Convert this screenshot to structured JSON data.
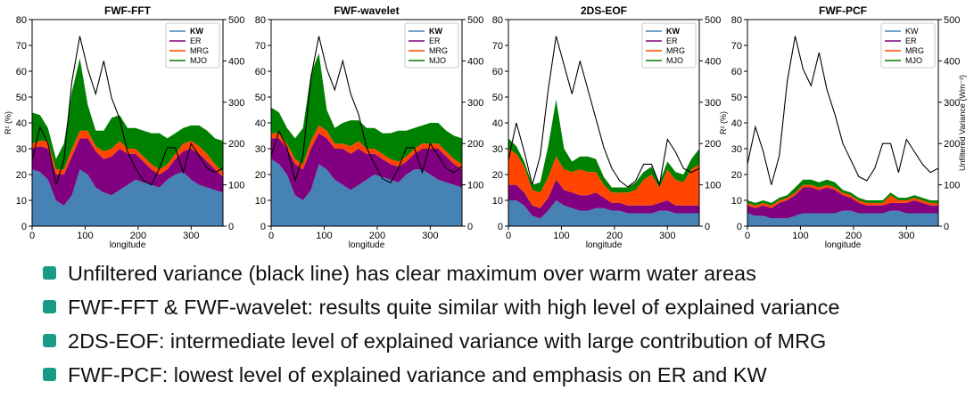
{
  "chart_data": [
    {
      "type": "area",
      "title": "FWF-FFT",
      "xlabel": "longitude",
      "ylabel": "R² (%)",
      "y2label": "",
      "xlim": [
        0,
        360
      ],
      "ylim": [
        0,
        80
      ],
      "y2lim": [
        0,
        500
      ],
      "xticks": [
        0,
        100,
        200,
        300
      ],
      "yticks": [
        0,
        10,
        20,
        30,
        40,
        50,
        60,
        70,
        80
      ],
      "y2ticks": [
        0,
        100,
        200,
        300,
        400,
        500
      ],
      "x": [
        0,
        15,
        30,
        45,
        60,
        75,
        90,
        105,
        120,
        135,
        150,
        165,
        180,
        195,
        210,
        225,
        240,
        255,
        270,
        285,
        300,
        315,
        330,
        345,
        360
      ],
      "legend": [
        "KW",
        "ER",
        "MRG",
        "MJO"
      ],
      "series": [
        {
          "name": "KW",
          "color": "#4682b4",
          "values": [
            22,
            21,
            18,
            10,
            8,
            12,
            22,
            20,
            15,
            13,
            12,
            14,
            16,
            18,
            17,
            16,
            15,
            18,
            20,
            21,
            18,
            16,
            15,
            14,
            13
          ]
        },
        {
          "name": "ER",
          "color": "#800080",
          "values": [
            8,
            10,
            12,
            10,
            12,
            15,
            12,
            14,
            14,
            13,
            15,
            16,
            12,
            10,
            8,
            6,
            5,
            4,
            6,
            8,
            12,
            12,
            10,
            8,
            6
          ]
        },
        {
          "name": "MRG",
          "color": "#ff4500",
          "values": [
            2,
            2,
            3,
            2,
            2,
            3,
            3,
            3,
            2,
            3,
            3,
            3,
            2,
            2,
            2,
            2,
            2,
            2,
            2,
            3,
            3,
            3,
            3,
            2,
            2
          ]
        },
        {
          "name": "MJO",
          "color": "#008000",
          "values": [
            12,
            10,
            5,
            4,
            10,
            22,
            28,
            10,
            6,
            8,
            12,
            10,
            8,
            8,
            10,
            12,
            14,
            10,
            8,
            6,
            6,
            8,
            9,
            10,
            12
          ]
        }
      ],
      "unfiltered": [
        160,
        240,
        200,
        100,
        160,
        350,
        460,
        380,
        320,
        400,
        310,
        260,
        180,
        140,
        110,
        100,
        140,
        190,
        190,
        130,
        200,
        170,
        140,
        130,
        140
      ],
      "legend_title_bold": true
    },
    {
      "type": "area",
      "title": "FWF-wavelet",
      "xlabel": "longitude",
      "ylabel": "",
      "y2label": "",
      "xlim": [
        0,
        360
      ],
      "ylim": [
        0,
        80
      ],
      "y2lim": [
        0,
        500
      ],
      "xticks": [
        0,
        100,
        200,
        300
      ],
      "yticks": [
        0,
        10,
        20,
        30,
        40,
        50,
        60,
        70,
        80
      ],
      "y2ticks": [
        0,
        100,
        200,
        300,
        400,
        500
      ],
      "x": [
        0,
        15,
        30,
        45,
        60,
        75,
        90,
        105,
        120,
        135,
        150,
        165,
        180,
        195,
        210,
        225,
        240,
        255,
        270,
        285,
        300,
        315,
        330,
        345,
        360
      ],
      "legend": [
        "KW",
        "ER",
        "MRG",
        "MJO"
      ],
      "series": [
        {
          "name": "KW",
          "color": "#4682b4",
          "values": [
            26,
            24,
            20,
            12,
            10,
            14,
            24,
            22,
            18,
            16,
            14,
            16,
            18,
            20,
            19,
            18,
            17,
            20,
            22,
            22,
            20,
            18,
            17,
            16,
            15
          ]
        },
        {
          "name": "ER",
          "color": "#800080",
          "values": [
            8,
            10,
            10,
            12,
            12,
            16,
            12,
            12,
            12,
            14,
            14,
            14,
            10,
            8,
            7,
            6,
            6,
            5,
            6,
            8,
            10,
            12,
            10,
            8,
            7
          ]
        },
        {
          "name": "MRG",
          "color": "#ff4500",
          "values": [
            2,
            2,
            2,
            2,
            2,
            3,
            3,
            3,
            2,
            2,
            3,
            3,
            2,
            2,
            2,
            2,
            2,
            2,
            2,
            2,
            2,
            2,
            2,
            2,
            2
          ]
        },
        {
          "name": "MJO",
          "color": "#008000",
          "values": [
            10,
            8,
            6,
            8,
            14,
            26,
            28,
            8,
            6,
            8,
            10,
            8,
            8,
            8,
            8,
            10,
            12,
            10,
            8,
            7,
            8,
            8,
            8,
            9,
            10
          ]
        }
      ],
      "unfiltered": [
        170,
        230,
        190,
        110,
        170,
        360,
        460,
        380,
        330,
        400,
        320,
        270,
        190,
        150,
        115,
        105,
        140,
        190,
        190,
        130,
        200,
        170,
        140,
        130,
        145
      ],
      "legend_title_bold": true
    },
    {
      "type": "area",
      "title": "2DS-EOF",
      "xlabel": "longitude",
      "ylabel": "",
      "y2label": "",
      "xlim": [
        0,
        360
      ],
      "ylim": [
        0,
        80
      ],
      "y2lim": [
        0,
        500
      ],
      "xticks": [
        0,
        100,
        200,
        300
      ],
      "yticks": [
        0,
        10,
        20,
        30,
        40,
        50,
        60,
        70,
        80
      ],
      "y2ticks": [
        0,
        100,
        200,
        300,
        400,
        500
      ],
      "x": [
        0,
        15,
        30,
        45,
        60,
        75,
        90,
        105,
        120,
        135,
        150,
        165,
        180,
        195,
        210,
        225,
        240,
        255,
        270,
        285,
        300,
        315,
        330,
        345,
        360
      ],
      "legend": [
        "KW",
        "ER",
        "MRG",
        "MJO"
      ],
      "series": [
        {
          "name": "KW",
          "color": "#4682b4",
          "values": [
            10,
            10,
            8,
            4,
            3,
            6,
            10,
            8,
            7,
            6,
            6,
            7,
            7,
            6,
            6,
            5,
            5,
            5,
            5,
            6,
            6,
            5,
            5,
            5,
            5
          ]
        },
        {
          "name": "ER",
          "color": "#800080",
          "values": [
            6,
            6,
            5,
            4,
            4,
            5,
            8,
            6,
            6,
            6,
            6,
            6,
            4,
            3,
            3,
            3,
            3,
            3,
            3,
            3,
            4,
            3,
            3,
            3,
            3
          ]
        },
        {
          "name": "MRG",
          "color": "#ff4500",
          "values": [
            14,
            12,
            10,
            6,
            6,
            8,
            9,
            8,
            8,
            10,
            9,
            8,
            5,
            4,
            4,
            5,
            6,
            10,
            12,
            6,
            12,
            10,
            9,
            14,
            16
          ]
        },
        {
          "name": "MJO",
          "color": "#008000",
          "values": [
            4,
            3,
            2,
            2,
            4,
            12,
            22,
            8,
            4,
            5,
            6,
            5,
            3,
            2,
            2,
            2,
            3,
            3,
            3,
            2,
            3,
            3,
            3,
            4,
            6
          ]
        }
      ],
      "unfiltered": [
        160,
        250,
        180,
        100,
        170,
        330,
        460,
        390,
        320,
        400,
        330,
        260,
        190,
        140,
        110,
        95,
        110,
        150,
        150,
        100,
        210,
        180,
        140,
        130,
        140
      ],
      "legend_title_bold": true
    },
    {
      "type": "area",
      "title": "FWF-PCF",
      "xlabel": "longitude",
      "ylabel": "R² (%)",
      "y2label": "Unfiltered Variance (Wm⁻²)",
      "xlim": [
        0,
        360
      ],
      "ylim": [
        0,
        80
      ],
      "y2lim": [
        0,
        500
      ],
      "xticks": [
        0,
        100,
        200,
        300
      ],
      "yticks": [
        0,
        10,
        20,
        30,
        40,
        50,
        60,
        70,
        80
      ],
      "y2ticks": [
        0,
        100,
        200,
        300,
        400,
        500
      ],
      "x": [
        0,
        15,
        30,
        45,
        60,
        75,
        90,
        105,
        120,
        135,
        150,
        165,
        180,
        195,
        210,
        225,
        240,
        255,
        270,
        285,
        300,
        315,
        330,
        345,
        360
      ],
      "legend": [
        "KW",
        "ER",
        "MRG",
        "MJO"
      ],
      "series": [
        {
          "name": "KW",
          "color": "#4682b4",
          "values": [
            5,
            4,
            4,
            3,
            3,
            3,
            4,
            5,
            5,
            5,
            5,
            5,
            6,
            6,
            5,
            5,
            5,
            5,
            6,
            6,
            5,
            5,
            5,
            5,
            5
          ]
        },
        {
          "name": "ER",
          "color": "#800080",
          "values": [
            3,
            3,
            4,
            4,
            6,
            7,
            8,
            10,
            10,
            9,
            10,
            9,
            6,
            5,
            4,
            3,
            3,
            3,
            3,
            3,
            4,
            5,
            4,
            3,
            3
          ]
        },
        {
          "name": "MRG",
          "color": "#ff4500",
          "values": [
            1,
            1,
            1,
            1,
            1,
            1,
            1,
            1,
            1,
            1,
            1,
            1,
            1,
            1,
            1,
            1,
            1,
            1,
            3,
            1,
            1,
            1,
            1,
            1,
            1
          ]
        },
        {
          "name": "MJO",
          "color": "#008000",
          "values": [
            1,
            1,
            1,
            1,
            1,
            1,
            2,
            2,
            2,
            2,
            2,
            2,
            1,
            1,
            1,
            1,
            1,
            1,
            1,
            1,
            1,
            1,
            1,
            1,
            1
          ]
        }
      ],
      "unfiltered": [
        150,
        240,
        180,
        100,
        170,
        350,
        460,
        380,
        340,
        420,
        330,
        270,
        200,
        160,
        120,
        110,
        140,
        200,
        200,
        130,
        210,
        180,
        150,
        130,
        140
      ],
      "legend_title_bold": false
    }
  ],
  "bullets": [
    {
      "text": "Unfiltered variance (black line) has clear maximum over warm water areas"
    },
    {
      "text": "FWF-FFT & FWF-wavelet: results quite similar with high level of explained variance"
    },
    {
      "text": "2DS-EOF: intermediate level of explained variance with large contribution of MRG"
    },
    {
      "text": "FWF-PCF: lowest level of explained variance and emphasis on ER and KW"
    }
  ]
}
